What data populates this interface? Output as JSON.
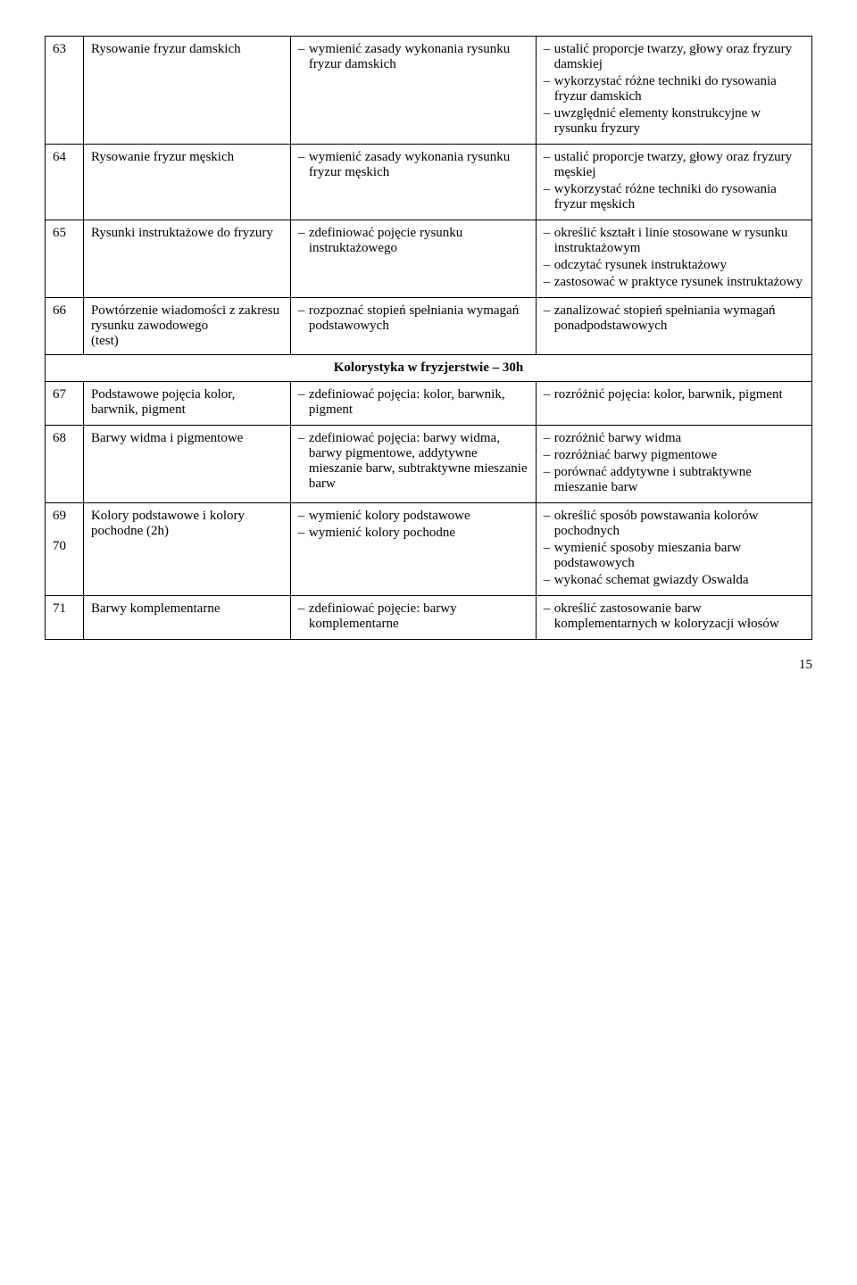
{
  "rows": [
    {
      "num": "63",
      "topic": "Rysowanie fryzur damskich",
      "c1": [
        "wymienić zasady wykonania rysunku fryzur damskich"
      ],
      "c2": [
        "ustalić proporcje twarzy, głowy oraz fryzury damskiej",
        "wykorzystać różne techniki do rysowania fryzur damskich",
        "uwzględnić elementy konstrukcyjne w rysunku fryzury"
      ]
    },
    {
      "num": "64",
      "topic": "Rysowanie fryzur męskich",
      "c1": [
        "wymienić zasady wykonania rysunku fryzur męskich"
      ],
      "c2": [
        "ustalić proporcje twarzy, głowy oraz fryzury męskiej",
        "wykorzystać różne techniki do rysowania fryzur męskich"
      ]
    },
    {
      "num": "65",
      "topic": "Rysunki instruktażowe do fryzury",
      "c1": [
        "zdefiniować pojęcie rysunku instruktażowego"
      ],
      "c2": [
        "określić kształt i linie stosowane w rysunku instruktażowym",
        "odczytać rysunek instruktażowy",
        "zastosować w praktyce rysunek instruktażowy"
      ]
    },
    {
      "num": "66",
      "topic": "Powtórzenie wiadomości z zakresu rysunku zawodowego\n(test)",
      "c1": [
        "rozpoznać stopień spełniania wymagań podstawowych"
      ],
      "c2": [
        "zanalizować stopień spełniania wymagań ponadpodstawowych"
      ]
    }
  ],
  "section_title": "Kolorystyka w fryzjerstwie – 30h",
  "rows2": [
    {
      "num": "67",
      "topic": "Podstawowe pojęcia kolor, barwnik, pigment",
      "c1": [
        "zdefiniować pojęcia: kolor, barwnik, pigment"
      ],
      "c2": [
        "rozróżnić pojęcia: kolor, barwnik, pigment"
      ]
    },
    {
      "num": "68",
      "topic": "Barwy widma i pigmentowe",
      "c1": [
        "zdefiniować pojęcia: barwy widma, barwy pigmentowe, addytywne mieszanie barw, subtraktywne mieszanie barw"
      ],
      "c2": [
        "rozróżnić barwy widma",
        "rozróżniać barwy pigmentowe",
        "porównać addytywne i subtraktywne mieszanie barw"
      ]
    },
    {
      "num": "69\n70",
      "topic": "Kolory podstawowe i kolory pochodne (2h)",
      "c1": [
        "wymienić kolory podstawowe",
        "wymienić kolory pochodne"
      ],
      "c2": [
        "określić sposób powstawania kolorów pochodnych",
        "wymienić sposoby mieszania barw podstawowych",
        "wykonać schemat gwiazdy Oswalda"
      ]
    },
    {
      "num": "71",
      "topic": "Barwy komplementarne",
      "c1": [
        "zdefiniować pojęcie: barwy komplementarne"
      ],
      "c2": [
        "określić zastosowanie barw komplementarnych w koloryzacji włosów"
      ]
    }
  ],
  "page_number": "15"
}
